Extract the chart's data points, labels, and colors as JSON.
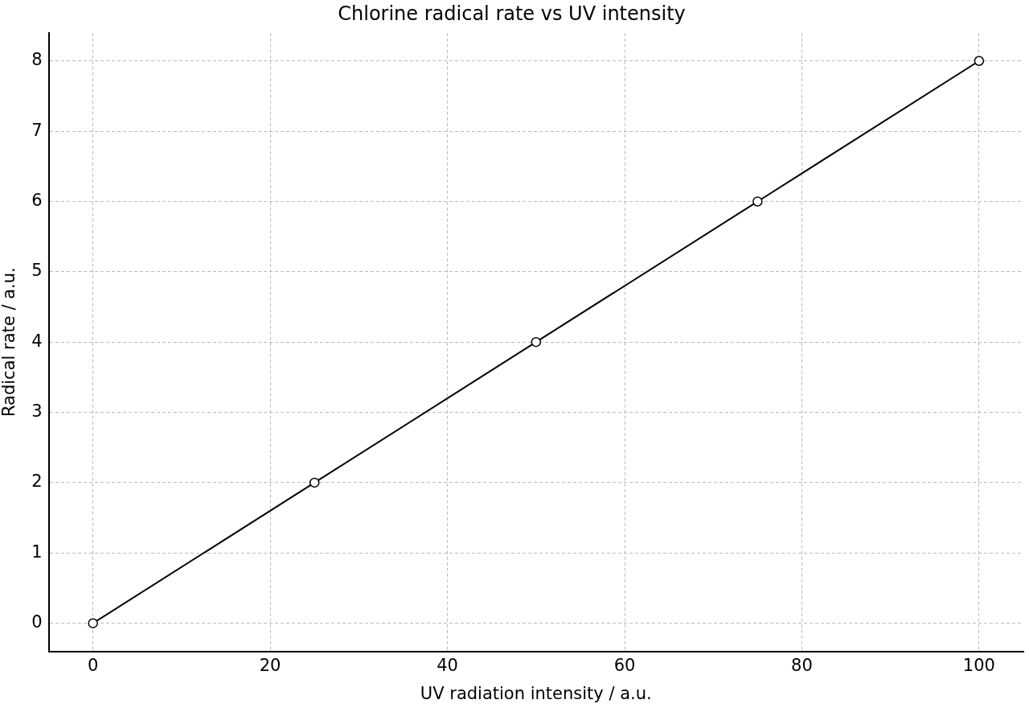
{
  "chart_data": {
    "type": "line",
    "title": "Chlorine radical rate vs UV intensity",
    "xlabel": "UV radiation intensity / a.u.",
    "ylabel": "Radical rate / a.u.",
    "x": [
      0,
      25,
      50,
      75,
      100
    ],
    "series": [
      {
        "color": "#000000",
        "values": [
          0,
          2,
          4,
          6,
          8
        ]
      }
    ],
    "xlim": [
      -5,
      105
    ],
    "xticks": [
      0,
      20,
      40,
      60,
      80,
      100
    ],
    "ylim": [
      -0.4,
      8.4
    ],
    "yticks": [
      0,
      1,
      2,
      3,
      4,
      5,
      6,
      7,
      8
    ],
    "grid": true,
    "marker": "circle",
    "line_style": "solid"
  }
}
